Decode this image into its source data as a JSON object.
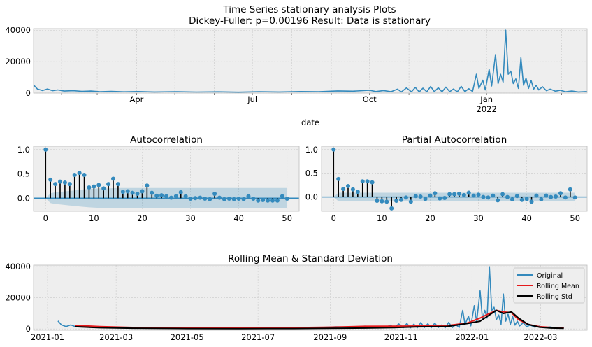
{
  "figure": {
    "title_line1": "Time Series stationary analysis Plots",
    "title_line2": "Dickey-Fuller: p=0.00196 Result: Data is stationary"
  },
  "colors": {
    "panel_bg": "#eeeeee",
    "grid": "#c8c8c8",
    "series": "#348abd",
    "rolling_mean": "#e41a1c",
    "rolling_std": "#000000",
    "conf_band": "#348abd"
  },
  "chart_data": [
    {
      "type": "line",
      "name": "raw-series",
      "xlabel": "date",
      "ylabel": "",
      "ylim": [
        0,
        41000
      ],
      "y_ticks": [
        0,
        20000,
        40000
      ],
      "x_ticks": [
        {
          "x": "2021-04-01",
          "label": "Apr"
        },
        {
          "x": "2021-07-01",
          "label": "Jul"
        },
        {
          "x": "2021-10-01",
          "label": "Oct"
        },
        {
          "x": "2022-01-01",
          "label": "Jan",
          "label2": "2022"
        }
      ],
      "xlim": [
        "2021-01-10",
        "2022-03-21"
      ],
      "points": [
        [
          "2021-01-10",
          5200
        ],
        [
          "2021-01-13",
          2600
        ],
        [
          "2021-01-17",
          1600
        ],
        [
          "2021-01-21",
          2600
        ],
        [
          "2021-01-25",
          1500
        ],
        [
          "2021-01-29",
          2000
        ],
        [
          "2021-02-03",
          1300
        ],
        [
          "2021-02-10",
          1500
        ],
        [
          "2021-02-17",
          1100
        ],
        [
          "2021-02-24",
          1300
        ],
        [
          "2021-03-03",
          900
        ],
        [
          "2021-03-12",
          1100
        ],
        [
          "2021-03-22",
          800
        ],
        [
          "2021-04-02",
          1000
        ],
        [
          "2021-04-15",
          700
        ],
        [
          "2021-05-01",
          900
        ],
        [
          "2021-05-18",
          650
        ],
        [
          "2021-06-04",
          800
        ],
        [
          "2021-06-20",
          600
        ],
        [
          "2021-07-06",
          850
        ],
        [
          "2021-07-22",
          700
        ],
        [
          "2021-08-08",
          1000
        ],
        [
          "2021-08-22",
          900
        ],
        [
          "2021-09-06",
          1400
        ],
        [
          "2021-09-18",
          1200
        ],
        [
          "2021-10-01",
          1800
        ],
        [
          "2021-10-06",
          1000
        ],
        [
          "2021-10-12",
          1600
        ],
        [
          "2021-10-18",
          900
        ],
        [
          "2021-10-23",
          2500
        ],
        [
          "2021-10-26",
          700
        ],
        [
          "2021-10-30",
          3300
        ],
        [
          "2021-11-03",
          800
        ],
        [
          "2021-11-06",
          3600
        ],
        [
          "2021-11-09",
          700
        ],
        [
          "2021-11-12",
          3100
        ],
        [
          "2021-11-15",
          800
        ],
        [
          "2021-11-18",
          4200
        ],
        [
          "2021-11-21",
          900
        ],
        [
          "2021-11-24",
          3400
        ],
        [
          "2021-11-27",
          800
        ],
        [
          "2021-11-30",
          3800
        ],
        [
          "2021-12-03",
          900
        ],
        [
          "2021-12-06",
          2600
        ],
        [
          "2021-12-09",
          800
        ],
        [
          "2021-12-12",
          4300
        ],
        [
          "2021-12-15",
          900
        ],
        [
          "2021-12-18",
          2800
        ],
        [
          "2021-12-21",
          1000
        ],
        [
          "2021-12-24",
          12000
        ],
        [
          "2021-12-26",
          3000
        ],
        [
          "2021-12-29",
          8200
        ],
        [
          "2021-12-31",
          2000
        ],
        [
          "2022-01-03",
          15000
        ],
        [
          "2022-01-05",
          4500
        ],
        [
          "2022-01-08",
          24500
        ],
        [
          "2022-01-10",
          6000
        ],
        [
          "2022-01-12",
          12000
        ],
        [
          "2022-01-14",
          7000
        ],
        [
          "2022-01-16",
          40000
        ],
        [
          "2022-01-18",
          12000
        ],
        [
          "2022-01-20",
          14000
        ],
        [
          "2022-01-22",
          6000
        ],
        [
          "2022-01-24",
          9000
        ],
        [
          "2022-01-26",
          3000
        ],
        [
          "2022-01-28",
          22500
        ],
        [
          "2022-01-30",
          5000
        ],
        [
          "2022-02-01",
          9500
        ],
        [
          "2022-02-03",
          3000
        ],
        [
          "2022-02-05",
          8000
        ],
        [
          "2022-02-07",
          2500
        ],
        [
          "2022-02-09",
          5000
        ],
        [
          "2022-02-11",
          2000
        ],
        [
          "2022-02-14",
          4000
        ],
        [
          "2022-02-17",
          1500
        ],
        [
          "2022-02-20",
          2500
        ],
        [
          "2022-02-24",
          1200
        ],
        [
          "2022-02-28",
          1800
        ],
        [
          "2022-03-04",
          800
        ],
        [
          "2022-03-09",
          1300
        ],
        [
          "2022-03-14",
          700
        ],
        [
          "2022-03-21",
          1000
        ]
      ]
    },
    {
      "type": "bar",
      "name": "acf",
      "title": "Autocorrelation",
      "xlabel": "",
      "ylabel": "",
      "xlim": [
        -2.5,
        52.5
      ],
      "ylim": [
        -0.27,
        1.07
      ],
      "x_ticks": [
        0,
        10,
        20,
        30,
        40,
        50
      ],
      "y_ticks": [
        0.0,
        0.5,
        1.0
      ],
      "y_tick_labels": [
        "0.0",
        "0.5",
        "1.0"
      ],
      "values": [
        1.0,
        0.38,
        0.29,
        0.34,
        0.32,
        0.29,
        0.48,
        0.52,
        0.48,
        0.22,
        0.24,
        0.27,
        0.2,
        0.29,
        0.4,
        0.29,
        0.13,
        0.14,
        0.11,
        0.09,
        0.14,
        0.26,
        0.11,
        0.05,
        0.06,
        0.04,
        0.01,
        0.04,
        0.12,
        0.04,
        -0.01,
        0.0,
        0.01,
        -0.01,
        -0.02,
        0.09,
        0.01,
        -0.02,
        -0.01,
        -0.02,
        -0.01,
        -0.02,
        0.04,
        -0.01,
        -0.05,
        -0.04,
        -0.05,
        -0.05,
        -0.05,
        0.04,
        -0.01
      ],
      "conf_upper": [
        0.0,
        0.1,
        0.12,
        0.13,
        0.14,
        0.15,
        0.16,
        0.17,
        0.18,
        0.19,
        0.195,
        0.2,
        0.2,
        0.2,
        0.205,
        0.21,
        0.21,
        0.21,
        0.21,
        0.21,
        0.21,
        0.21,
        0.21,
        0.21,
        0.21,
        0.21,
        0.21,
        0.21,
        0.21,
        0.21,
        0.21,
        0.21,
        0.21,
        0.21,
        0.21,
        0.21,
        0.21,
        0.21,
        0.21,
        0.21,
        0.21,
        0.21,
        0.21,
        0.21,
        0.21,
        0.21,
        0.21,
        0.21,
        0.21,
        0.21,
        0.21
      ]
    },
    {
      "type": "bar",
      "name": "pacf",
      "title": "Partial Autocorrelation",
      "xlabel": "",
      "ylabel": "",
      "xlim": [
        -2.5,
        52.5
      ],
      "ylim": [
        -0.3,
        1.07
      ],
      "x_ticks": [
        0,
        10,
        20,
        30,
        40,
        50
      ],
      "y_ticks": [
        0.0,
        0.5,
        1.0
      ],
      "y_tick_labels": [
        "0.0",
        "0.5",
        "1.0"
      ],
      "values": [
        1.0,
        0.38,
        0.17,
        0.23,
        0.16,
        0.11,
        0.33,
        0.33,
        0.31,
        -0.08,
        -0.09,
        -0.1,
        -0.24,
        -0.08,
        -0.06,
        -0.01,
        -0.1,
        0.02,
        0.01,
        -0.04,
        0.03,
        0.08,
        -0.03,
        -0.02,
        0.06,
        0.06,
        0.07,
        0.04,
        0.09,
        0.03,
        0.05,
        0.0,
        -0.01,
        0.03,
        -0.07,
        0.06,
        0.0,
        -0.05,
        0.02,
        -0.06,
        -0.04,
        -0.1,
        0.03,
        -0.05,
        0.03,
        0.0,
        0.01,
        0.08,
        -0.01,
        0.16,
        -0.01
      ],
      "conf_upper": [
        0.0,
        0.09,
        0.09,
        0.09,
        0.09,
        0.09,
        0.09,
        0.09,
        0.09,
        0.09,
        0.09,
        0.09,
        0.09,
        0.09,
        0.09,
        0.09,
        0.09,
        0.09,
        0.09,
        0.09,
        0.09,
        0.09,
        0.09,
        0.09,
        0.09,
        0.09,
        0.09,
        0.09,
        0.09,
        0.09,
        0.09,
        0.09,
        0.09,
        0.09,
        0.09,
        0.09,
        0.09,
        0.09,
        0.09,
        0.09,
        0.09,
        0.09,
        0.09,
        0.09,
        0.09,
        0.09,
        0.09,
        0.09,
        0.09,
        0.09,
        0.09
      ]
    },
    {
      "type": "line",
      "name": "rolling",
      "title": "Rolling Mean & Standard Deviation",
      "xlabel": "",
      "ylabel": "",
      "xlim": [
        "2020-12-20",
        "2022-04-10"
      ],
      "ylim": [
        -800,
        41000
      ],
      "y_ticks": [
        0,
        20000,
        40000
      ],
      "x_ticks": [
        {
          "x": "2021-01-01",
          "label": "2021-01"
        },
        {
          "x": "2021-03-01",
          "label": "2021-03"
        },
        {
          "x": "2021-05-01",
          "label": "2021-05"
        },
        {
          "x": "2021-07-01",
          "label": "2021-07"
        },
        {
          "x": "2021-09-01",
          "label": "2021-09"
        },
        {
          "x": "2021-11-01",
          "label": "2021-11"
        },
        {
          "x": "2022-01-01",
          "label": "2022-01"
        },
        {
          "x": "2022-03-01",
          "label": "2022-03"
        }
      ],
      "legend": {
        "position": "top-right",
        "entries": [
          {
            "name": "Original",
            "color": "#348abd"
          },
          {
            "name": "Rolling Mean",
            "color": "#e41a1c"
          },
          {
            "name": "Rolling Std",
            "color": "#000000"
          }
        ]
      },
      "series": [
        {
          "name": "Rolling Mean",
          "points": [
            [
              "2021-01-25",
              2300
            ],
            [
              "2021-02-15",
              1600
            ],
            [
              "2021-03-15",
              1000
            ],
            [
              "2021-05-01",
              800
            ],
            [
              "2021-06-15",
              700
            ],
            [
              "2021-08-01",
              900
            ],
            [
              "2021-09-01",
              1200
            ],
            [
              "2021-10-01",
              1700
            ],
            [
              "2021-10-26",
              1800
            ],
            [
              "2021-11-15",
              1900
            ],
            [
              "2021-12-10",
              2100
            ],
            [
              "2021-12-28",
              3800
            ],
            [
              "2022-01-08",
              7000
            ],
            [
              "2022-01-16",
              10000
            ],
            [
              "2022-01-22",
              12000
            ],
            [
              "2022-01-28",
              11000
            ],
            [
              "2022-02-04",
              10500
            ],
            [
              "2022-02-10",
              6000
            ],
            [
              "2022-02-18",
              3000
            ],
            [
              "2022-02-28",
              1500
            ],
            [
              "2022-03-10",
              1000
            ],
            [
              "2022-03-21",
              900
            ]
          ]
        },
        {
          "name": "Rolling Std",
          "points": [
            [
              "2021-01-25",
              1500
            ],
            [
              "2021-02-15",
              800
            ],
            [
              "2021-03-15",
              500
            ],
            [
              "2021-05-01",
              300
            ],
            [
              "2021-06-15",
              250
            ],
            [
              "2021-08-01",
              300
            ],
            [
              "2021-09-01",
              400
            ],
            [
              "2021-10-01",
              600
            ],
            [
              "2021-10-26",
              900
            ],
            [
              "2021-11-15",
              1400
            ],
            [
              "2021-12-10",
              1600
            ],
            [
              "2021-12-28",
              3500
            ],
            [
              "2022-01-08",
              5000
            ],
            [
              "2022-01-16",
              9000
            ],
            [
              "2022-01-22",
              12000
            ],
            [
              "2022-01-28",
              10000
            ],
            [
              "2022-02-04",
              11000
            ],
            [
              "2022-02-10",
              7000
            ],
            [
              "2022-02-18",
              3000
            ],
            [
              "2022-02-28",
              1200
            ],
            [
              "2022-03-10",
              600
            ],
            [
              "2022-03-21",
              400
            ]
          ]
        }
      ]
    }
  ]
}
